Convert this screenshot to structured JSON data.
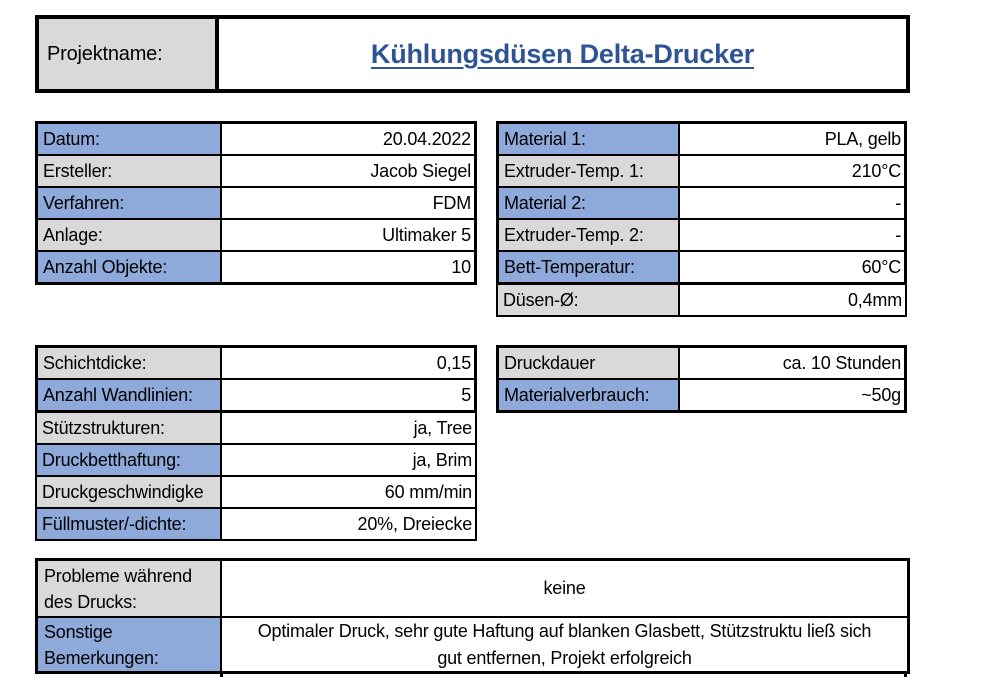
{
  "colors": {
    "label_blue": "#8EAADB",
    "label_gray": "#D9D9D9",
    "title_blue": "#2F5496",
    "border": "#000000"
  },
  "header": {
    "label": "Projektname:",
    "title": "Kühlungsdüsen Delta-Drucker"
  },
  "info": {
    "left": {
      "rows": [
        {
          "label": "Datum:",
          "value": "20.04.2022",
          "tone": "blue"
        },
        {
          "label": "Ersteller:",
          "value": "Jacob Siegel",
          "tone": "gray"
        },
        {
          "label": "Verfahren:",
          "value": "FDM",
          "tone": "blue"
        },
        {
          "label": "Anlage:",
          "value": "Ultimaker 5",
          "tone": "gray"
        },
        {
          "label": "Anzahl Objekte:",
          "value": "10",
          "tone": "blue"
        }
      ]
    },
    "right": {
      "rows": [
        {
          "label": "Material 1:",
          "value": "PLA, gelb",
          "tone": "blue"
        },
        {
          "label": "Extruder-Temp. 1:",
          "value": "210°C",
          "tone": "gray"
        },
        {
          "label": "Material 2:",
          "value": "-",
          "tone": "blue"
        },
        {
          "label": "Extruder-Temp. 2:",
          "value": "-",
          "tone": "gray"
        },
        {
          "label": "Bett-Temperatur:",
          "value": "60°C",
          "tone": "blue"
        }
      ],
      "extra_rows": [
        {
          "label": "Düsen-Ø:",
          "value": "0,4mm",
          "tone": "gray"
        }
      ]
    }
  },
  "print_settings": {
    "left": {
      "rows": [
        {
          "label": "Schichtdicke:",
          "value": "0,15",
          "tone": "gray"
        },
        {
          "label": "Anzahl Wandlinien:",
          "value": "5",
          "tone": "blue"
        }
      ],
      "extra_rows": [
        {
          "label": "Stützstrukturen:",
          "value": "ja, Tree",
          "tone": "gray"
        },
        {
          "label": "Druckbetthaftung:",
          "value": "ja, Brim",
          "tone": "blue"
        },
        {
          "label": "Druckgeschwindigke",
          "value": "60 mm/min",
          "tone": "gray"
        },
        {
          "label": "Füllmuster/-dichte:",
          "value": "20%, Dreiecke",
          "tone": "blue"
        }
      ]
    },
    "right": {
      "rows": [
        {
          "label": "Druckdauer",
          "value": "ca. 10 Stunden",
          "tone": "gray"
        },
        {
          "label": "Materialverbrauch:",
          "value": "~50g",
          "tone": "blue"
        }
      ]
    }
  },
  "notes": {
    "rows": [
      {
        "label": "Probleme während\ndes Drucks:",
        "value": "keine",
        "tone": "gray"
      },
      {
        "label": "Sonstige\nBemerkungen:",
        "value": "Optimaler Druck, sehr gute Haftung auf blanken Glasbett, Stützstruktu ließ sich gut entfernen, Projekt erfolgreich",
        "tone": "blue"
      }
    ]
  }
}
